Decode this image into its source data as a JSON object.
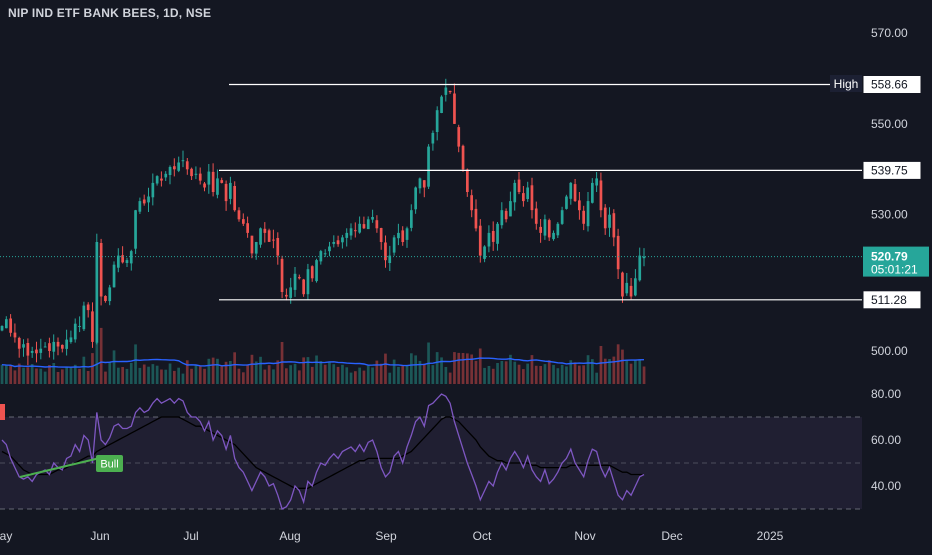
{
  "symbol": {
    "title": "NIP IND ETF BANK BEES, 1D, NSE"
  },
  "colors": {
    "background": "#141722",
    "up": "#26a69a",
    "down": "#ef5350",
    "volume_ma": "#2962ff",
    "rsi_line": "#7e57c2",
    "rsi_ma": "#000000",
    "rsi_band": "#2a2640",
    "level_line": "#ffffff",
    "current_price_line": "#26a69a",
    "bull_label": "#4caf50"
  },
  "chart_data": [
    {
      "type": "candlestick",
      "name": "price-pane",
      "y_axis": {
        "ticks": [
          570.0,
          550.0,
          530.0,
          500.0
        ],
        "tick_labels": [
          "570.00",
          "550.00",
          "530.00",
          "500.00"
        ]
      },
      "x_axis": {
        "labels": [
          "May",
          "Jun",
          "Jul",
          "Aug",
          "Sep",
          "Oct",
          "Nov",
          "Dec",
          "2025"
        ]
      },
      "high_label": "High",
      "high_value": "558.78",
      "levels": [
        {
          "value": 558.66,
          "label": "558.66"
        },
        {
          "value": 539.75,
          "label": "539.75"
        },
        {
          "value": 511.28,
          "label": "511.28"
        }
      ],
      "last_price": {
        "value": 520.79,
        "label": "520.79",
        "countdown": "05:01:21"
      },
      "ohlc_close_estimates": [
        505.5,
        507.0,
        504.0,
        503.0,
        500.5,
        501.5,
        499.0,
        500.0,
        499.5,
        500.5,
        501.0,
        500.0,
        502.0,
        501.0,
        500.5,
        502.5,
        503.0,
        506.0,
        505.5,
        510.0,
        509.0,
        502.0,
        524.0,
        512.0,
        511.0,
        514.0,
        519.0,
        521.0,
        519.5,
        520.0,
        522.0,
        531.0,
        533.0,
        532.5,
        534.0,
        537.0,
        538.5,
        537.5,
        539.0,
        540.5,
        540.0,
        541.5,
        542.0,
        540.0,
        538.5,
        539.0,
        537.5,
        536.0,
        539.5,
        535.0,
        538.0,
        537.0,
        533.0,
        537.0,
        531.0,
        529.0,
        528.0,
        526.0,
        521.5,
        524.0,
        527.0,
        526.0,
        524.0,
        524.5,
        521.0,
        513.0,
        512.0,
        514.0,
        517.0,
        516.0,
        512.5,
        518.0,
        516.0,
        520.0,
        522.0,
        521.5,
        523.0,
        524.0,
        523.5,
        525.0,
        526.0,
        527.0,
        526.5,
        528.0,
        527.0,
        529.0,
        529.5,
        527.0,
        524.0,
        520.0,
        521.0,
        525.0,
        526.0,
        524.0,
        527.0,
        531.0,
        536.0,
        538.0,
        536.0,
        545.0,
        548.0,
        553.0,
        556.0,
        558.0,
        557.0,
        550.0,
        545.0,
        540.0,
        535.0,
        531.0,
        527.0,
        521.0,
        523.0,
        526.0,
        524.0,
        528.0,
        531.0,
        529.0,
        533.0,
        537.0,
        535.0,
        533.0,
        536.0,
        531.0,
        528.0,
        526.0,
        529.0,
        525.0,
        526.0,
        528.0,
        531.0,
        534.0,
        537.0,
        533.0,
        531.0,
        528.0,
        533.0,
        537.0,
        538.0,
        531.0,
        527.0,
        530.0,
        525.0,
        518.0,
        512.0,
        515.0,
        512.0,
        516.0,
        521.0,
        520.79
      ]
    },
    {
      "type": "line",
      "name": "rsi-pane",
      "y_axis": {
        "ticks": [
          80.0,
          60.0,
          40.0
        ],
        "tick_labels": [
          "80.00",
          "60.00",
          "40.00"
        ]
      },
      "bands": {
        "upper": 70,
        "middle": 50,
        "lower": 30
      },
      "divergence_label": "Bull",
      "series": [
        {
          "values": [
            60,
            58,
            52,
            48,
            44,
            43,
            44,
            42,
            45,
            46,
            47,
            45,
            50,
            48,
            47,
            52,
            53,
            58,
            55,
            62,
            60,
            50,
            72,
            60,
            58,
            61,
            66,
            67,
            65,
            65,
            66,
            72,
            74,
            72,
            73,
            76,
            78,
            76,
            77,
            78,
            76,
            78,
            77,
            72,
            70,
            70,
            68,
            64,
            68,
            60,
            64,
            62,
            56,
            62,
            52,
            48,
            46,
            42,
            38,
            42,
            46,
            44,
            40,
            41,
            36,
            30,
            31,
            34,
            40,
            38,
            33,
            42,
            40,
            46,
            50,
            49,
            52,
            54,
            52,
            55,
            56,
            57,
            55,
            58,
            55,
            59,
            60,
            55,
            48,
            44,
            46,
            53,
            55,
            50,
            57,
            62,
            68,
            70,
            66,
            75,
            76,
            78,
            80,
            79,
            76,
            68,
            62,
            56,
            50,
            45,
            40,
            34,
            38,
            42,
            40,
            46,
            50,
            47,
            52,
            55,
            52,
            48,
            53,
            47,
            44,
            42,
            47,
            41,
            43,
            46,
            50,
            52,
            56,
            50,
            47,
            44,
            51,
            56,
            55,
            48,
            44,
            48,
            42,
            36,
            34,
            38,
            36,
            40,
            44,
            45
          ]
        },
        {
          "values": [
            55,
            54,
            53,
            51,
            49,
            47,
            46,
            45,
            45,
            45,
            45,
            45,
            46,
            47,
            47,
            48,
            49,
            50,
            51,
            52,
            53,
            53,
            55,
            56,
            57,
            58,
            59,
            60,
            61,
            62,
            63,
            64,
            65,
            66,
            67,
            68,
            69,
            70,
            70,
            70,
            70,
            70,
            69,
            68,
            67,
            66,
            66,
            65,
            64,
            63,
            62,
            61,
            60,
            59,
            58,
            56,
            54,
            52,
            50,
            48,
            47,
            46,
            45,
            44,
            43,
            42,
            41,
            40,
            39,
            39,
            39,
            39,
            40,
            41,
            42,
            43,
            44,
            45,
            46,
            47,
            48,
            49,
            50,
            51,
            51,
            52,
            52,
            52,
            52,
            52,
            52,
            52,
            52,
            53,
            54,
            55,
            57,
            59,
            61,
            63,
            65,
            67,
            69,
            70,
            70,
            69,
            68,
            66,
            64,
            62,
            60,
            57,
            55,
            53,
            52,
            51,
            51,
            50,
            50,
            50,
            50,
            50,
            50,
            49,
            49,
            48,
            48,
            48,
            48,
            48,
            48,
            48,
            49,
            49,
            49,
            49,
            49,
            49,
            49,
            49,
            49,
            49,
            48,
            47,
            46,
            46,
            45,
            45,
            45,
            45
          ]
        }
      ]
    }
  ]
}
